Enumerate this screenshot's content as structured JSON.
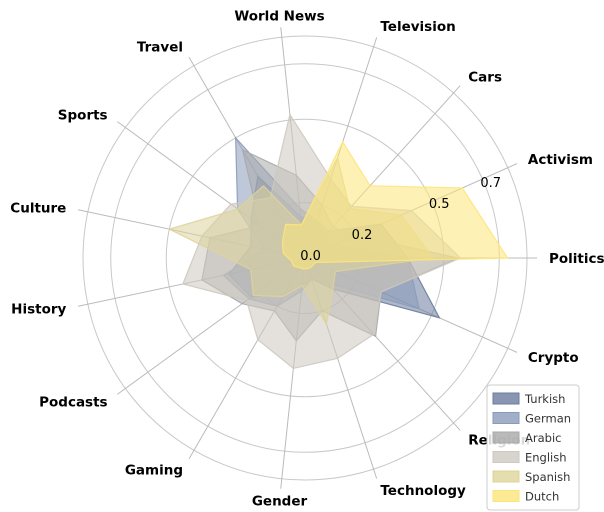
{
  "chart_data": {
    "type": "radar",
    "title": "",
    "categories": [
      "Politics",
      "Activism",
      "Cars",
      "Television",
      "World News",
      "Travel",
      "Sports",
      "Culture",
      "History",
      "Podcasts",
      "Gaming",
      "Gender",
      "Technology",
      "Religion",
      "Crypto"
    ],
    "rlim": [
      0,
      0.8
    ],
    "ticks": [
      "0.0",
      "0.2",
      "0.5",
      "0.7"
    ],
    "tick_values": [
      0.0,
      0.2,
      0.5,
      0.7
    ],
    "grid": true,
    "legend_position": "bottom-right",
    "series": [
      {
        "name": "Turkish",
        "color": "#6b7c9e",
        "values": [
          0.37,
          0.3,
          0.13,
          0.14,
          0.15,
          0.34,
          0.24,
          0.2,
          0.28,
          0.24,
          0.15,
          0.1,
          0.08,
          0.15,
          0.53
        ]
      },
      {
        "name": "German",
        "color": "#8a9bba",
        "values": [
          0.37,
          0.12,
          0.1,
          0.14,
          0.18,
          0.5,
          0.3,
          0.15,
          0.3,
          0.25,
          0.2,
          0.12,
          0.08,
          0.12,
          0.45
        ]
      },
      {
        "name": "Arabic",
        "color": "#a9a9a9",
        "values": [
          0.55,
          0.2,
          0.15,
          0.2,
          0.3,
          0.45,
          0.2,
          0.35,
          0.38,
          0.28,
          0.22,
          0.3,
          0.2,
          0.38,
          0.3
        ]
      },
      {
        "name": "English",
        "color": "#cdc8c0",
        "values": [
          0.56,
          0.42,
          0.25,
          0.3,
          0.52,
          0.25,
          0.33,
          0.38,
          0.45,
          0.26,
          0.34,
          0.4,
          0.38,
          0.37,
          0.3
        ]
      },
      {
        "name": "Spanish",
        "color": "#ddd49a",
        "values": [
          0.46,
          0.38,
          0.24,
          0.38,
          0.12,
          0.3,
          0.3,
          0.5,
          0.2,
          0.23,
          0.16,
          0.1,
          0.25,
          0.15,
          0.12
        ]
      },
      {
        "name": "Dutch",
        "color": "#fde57a",
        "values": [
          0.73,
          0.62,
          0.35,
          0.44,
          0.12,
          0.14,
          0.1,
          0.08,
          0.05,
          0.05,
          0.04,
          0.04,
          0.04,
          0.04,
          0.04
        ]
      }
    ]
  }
}
